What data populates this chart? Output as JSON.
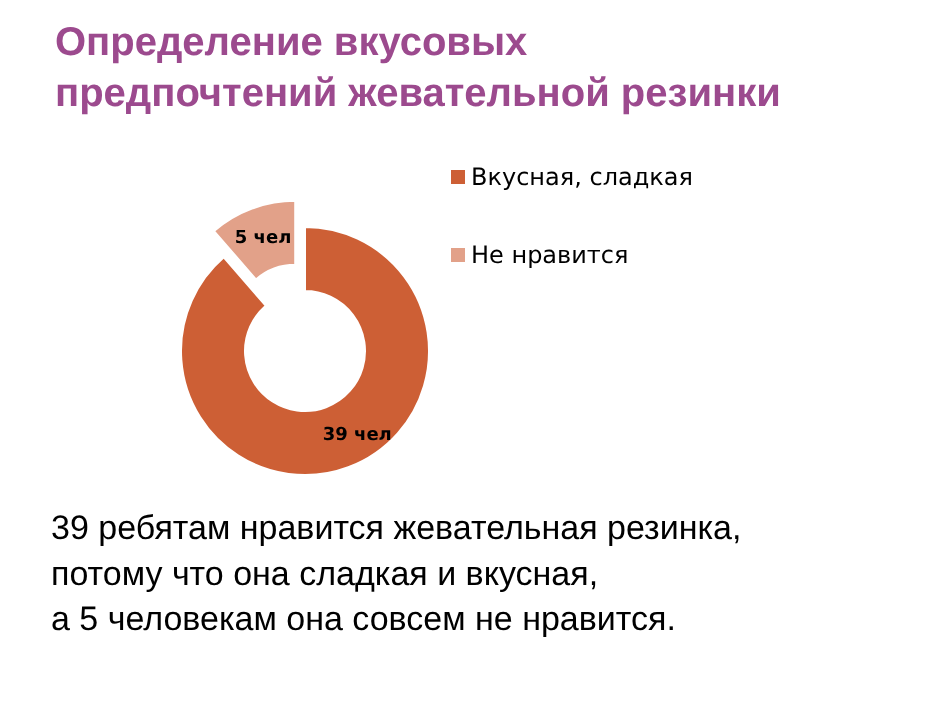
{
  "chart_data": {
    "type": "donut",
    "title": "Определение вкусовых\nпредпочтений жевательной резинки",
    "categories": [
      "Вкусная, сладкая",
      "Не нравится"
    ],
    "values": [
      39,
      5
    ],
    "colors": [
      "#cd5f35",
      "#e2a189"
    ],
    "value_labels": [
      "39 чел",
      "5 чел"
    ],
    "legend": "right",
    "annotations": [
      "39 ребятам  нравится жевательная резинка,\nпотому что она сладкая и вкусная,\nа 5 человекам она совсем не нравится."
    ]
  }
}
